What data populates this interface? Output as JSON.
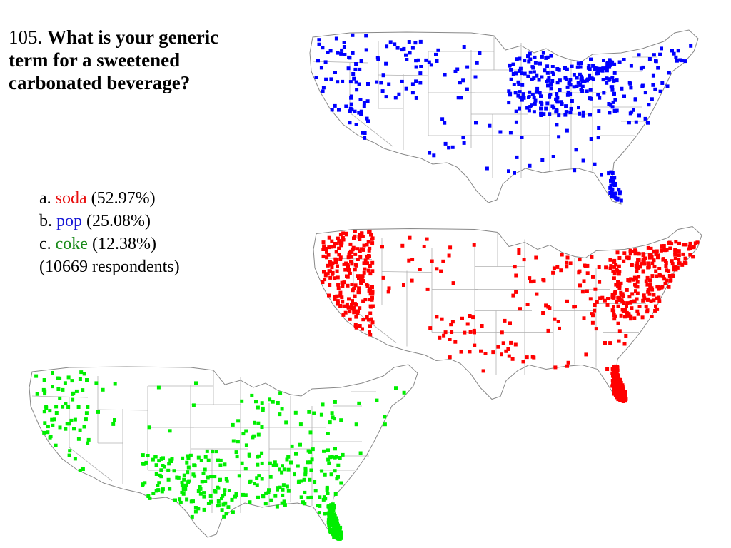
{
  "question": {
    "number": "105.",
    "text": "What is your generic term for a sweetened carbonated beverage?"
  },
  "answers": [
    {
      "letter": "a.",
      "term": "soda",
      "percent": "(52.97%)",
      "color": "#e81010"
    },
    {
      "letter": "b.",
      "term": "pop",
      "percent": "(25.08%)",
      "color": "#1a1ad6"
    },
    {
      "letter": "c.",
      "term": "coke",
      "percent": "(12.38%)",
      "color": "#1a8a1a"
    }
  ],
  "respondents": "(10669 respondents)",
  "maps": [
    {
      "id": "pop",
      "term": "pop",
      "dot_color": "#0000ff",
      "region_weights": {
        "west": 1.2,
        "north": 1.0,
        "midwest": 4.0,
        "south": 0.6,
        "northeast": 1.0,
        "florida": 0.5
      }
    },
    {
      "id": "soda",
      "term": "soda",
      "dot_color": "#ff0000",
      "region_weights": {
        "west": 4.0,
        "north": 0.4,
        "midwest": 1.2,
        "south": 1.2,
        "northeast": 4.5,
        "florida": 3.0
      }
    },
    {
      "id": "coke",
      "term": "coke",
      "dot_color": "#00ee00",
      "region_weights": {
        "west": 1.2,
        "north": 0.2,
        "midwest": 0.8,
        "south": 4.5,
        "northeast": 0.2,
        "florida": 2.5
      }
    }
  ]
}
